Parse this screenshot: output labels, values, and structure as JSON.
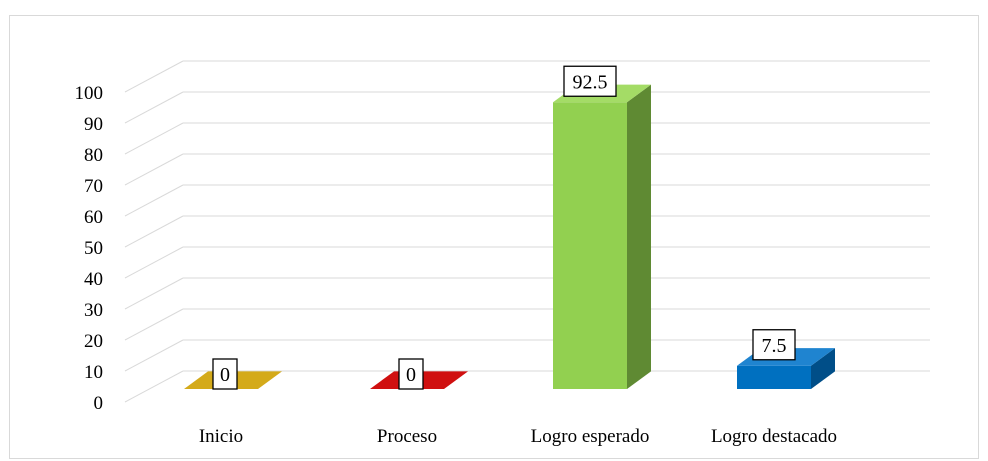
{
  "chart_data": {
    "type": "bar",
    "categories": [
      "Inicio",
      "Proceso",
      "Logro esperado",
      "Logro destacado"
    ],
    "values": [
      0,
      0,
      92.5,
      7.5
    ],
    "data_labels": [
      "0",
      "0",
      "92.5",
      "7.5"
    ],
    "colors": {
      "front": [
        "#c79a00",
        "#c00000",
        "#92d050",
        "#0070c0"
      ],
      "side": [
        "#8f6e00",
        "#8a0000",
        "#5f8a33",
        "#004e88"
      ],
      "top": [
        "#d4aa1a",
        "#d01010",
        "#a4dc66",
        "#1f84d0"
      ]
    },
    "y_ticks": [
      "0",
      "10",
      "20",
      "30",
      "40",
      "50",
      "60",
      "70",
      "80",
      "90",
      "100"
    ],
    "ylim": [
      0,
      100
    ],
    "title": "",
    "xlabel": "",
    "ylabel": "",
    "grid": true,
    "legend": "none",
    "style": "3d-column"
  }
}
